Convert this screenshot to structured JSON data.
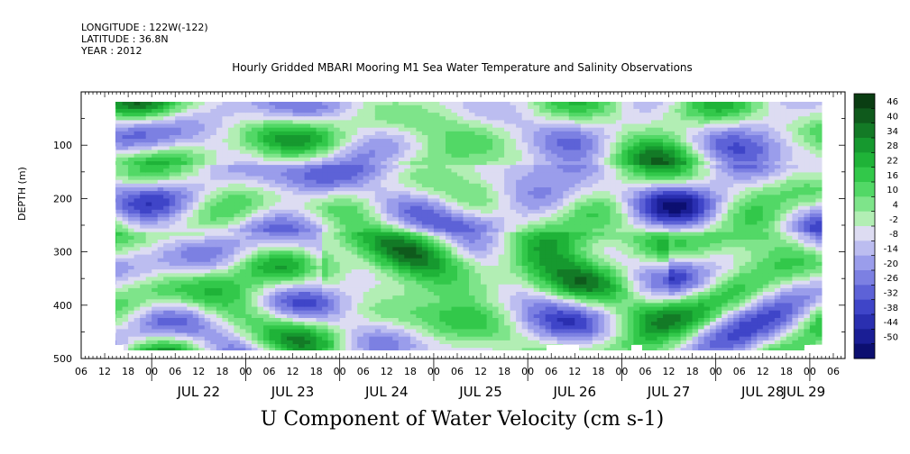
{
  "header": {
    "longitude": "LONGITUDE : 122W(-122)",
    "latitude": "LATITUDE : 36.8N",
    "year": "YEAR : 2012"
  },
  "chart_data": {
    "type": "heatmap",
    "title": "Hourly Gridded MBARI Mooring M1 Sea Water Temperature and Salinity Observations",
    "xlabel": "U Component of Water Velocity (cm s-1)",
    "ylabel": "DEPTH (m)",
    "x_range": [
      "2012-07-21T06:00",
      "2012-07-29T09:00"
    ],
    "ylim": [
      500,
      0
    ],
    "y_ticks": [
      100,
      200,
      300,
      400,
      500
    ],
    "x_hour_ticks": [
      "06",
      "12",
      "18",
      "00",
      "06",
      "12",
      "18",
      "00",
      "06",
      "12",
      "18",
      "00",
      "06",
      "12",
      "18",
      "00",
      "06",
      "12",
      "18",
      "00",
      "06",
      "12",
      "18",
      "00",
      "06",
      "12",
      "18",
      "00",
      "06",
      "12",
      "18",
      "00",
      "06"
    ],
    "x_date_labels": [
      "JUL 22",
      "JUL 23",
      "JUL 24",
      "JUL 25",
      "JUL 26",
      "JUL 27",
      "JUL 28",
      "JUL 29"
    ],
    "colorbar": {
      "levels": [
        46,
        40,
        34,
        28,
        22,
        16,
        10,
        4,
        -2,
        -8,
        -14,
        -20,
        -26,
        -32,
        -38,
        -44,
        -50
      ],
      "colors": [
        "#0a3d12",
        "#0f5a1c",
        "#137a26",
        "#16992f",
        "#1fb338",
        "#32c84a",
        "#52d866",
        "#7ee48a",
        "#b2eeb4",
        "#dddcf2",
        "#bcbdf0",
        "#9a9deb",
        "#7c80e2",
        "#5d62d7",
        "#3f45c8",
        "#2a2fb0",
        "#1a1e95",
        "#0c0f70"
      ],
      "range": [
        -50,
        46
      ]
    }
  }
}
